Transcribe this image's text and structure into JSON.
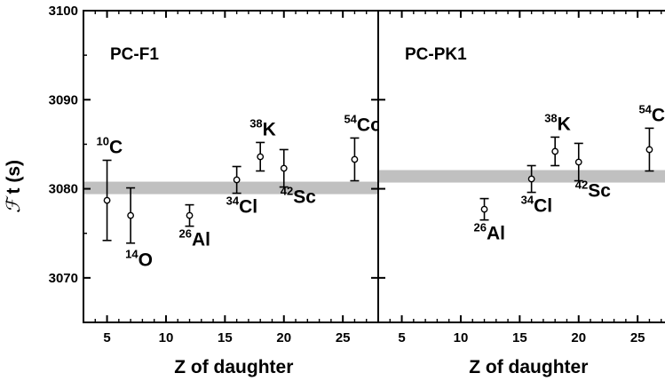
{
  "chart_data": {
    "type": "scatter",
    "ylabel_symbol": "ℱ",
    "ylabel_text": "t (s)",
    "ylim": [
      3065,
      3100
    ],
    "yticks": [
      3070,
      3080,
      3090,
      3100
    ],
    "shared_y": true,
    "panels": [
      {
        "title": "PC-F1",
        "xlabel": "Z of daughter",
        "xlim": [
          3,
          28
        ],
        "xticks": [
          5,
          10,
          15,
          20,
          25
        ],
        "band": {
          "center": 3080.1,
          "half_width": 0.7
        },
        "points": [
          {
            "nucleus_mass": "10",
            "nucleus_symbol": "C",
            "z": 5,
            "y": 3078.7,
            "err_lo": 4.5,
            "err_hi": 4.5,
            "label_pos": "above"
          },
          {
            "nucleus_mass": "14",
            "nucleus_symbol": "O",
            "z": 7,
            "y": 3077.0,
            "err_lo": 3.1,
            "err_hi": 3.1,
            "label_pos": "below"
          },
          {
            "nucleus_mass": "26",
            "nucleus_symbol": "Al",
            "z": 12,
            "y": 3077.0,
            "err_lo": 1.2,
            "err_hi": 1.2,
            "label_pos": "below"
          },
          {
            "nucleus_mass": "34",
            "nucleus_symbol": "Cl",
            "z": 16,
            "y": 3081.0,
            "err_lo": 1.5,
            "err_hi": 1.5,
            "label_pos": "below"
          },
          {
            "nucleus_mass": "38",
            "nucleus_symbol": "K",
            "z": 18,
            "y": 3083.6,
            "err_lo": 1.6,
            "err_hi": 1.6,
            "label_pos": "above"
          },
          {
            "nucleus_mass": "42",
            "nucleus_symbol": "Sc",
            "z": 20,
            "y": 3082.3,
            "err_lo": 2.1,
            "err_hi": 2.1,
            "label_pos": "below"
          },
          {
            "nucleus_mass": "54",
            "nucleus_symbol": "Co",
            "z": 26,
            "y": 3083.3,
            "err_lo": 2.4,
            "err_hi": 2.4,
            "label_pos": "above"
          }
        ]
      },
      {
        "title": "PC-PK1",
        "xlabel": "Z of daughter",
        "xlim": [
          3,
          28
        ],
        "xticks": [
          5,
          10,
          15,
          20,
          25
        ],
        "band": {
          "center": 3081.4,
          "half_width": 0.7
        },
        "points": [
          {
            "nucleus_mass": "26",
            "nucleus_symbol": "Al",
            "z": 12,
            "y": 3077.7,
            "err_lo": 1.2,
            "err_hi": 1.2,
            "label_pos": "below"
          },
          {
            "nucleus_mass": "34",
            "nucleus_symbol": "Cl",
            "z": 16,
            "y": 3081.1,
            "err_lo": 1.5,
            "err_hi": 1.5,
            "label_pos": "below"
          },
          {
            "nucleus_mass": "38",
            "nucleus_symbol": "K",
            "z": 18,
            "y": 3084.2,
            "err_lo": 1.6,
            "err_hi": 1.6,
            "label_pos": "above"
          },
          {
            "nucleus_mass": "42",
            "nucleus_symbol": "Sc",
            "z": 20,
            "y": 3083.0,
            "err_lo": 2.1,
            "err_hi": 2.1,
            "label_pos": "below"
          },
          {
            "nucleus_mass": "54",
            "nucleus_symbol": "Co",
            "z": 26,
            "y": 3084.4,
            "err_lo": 2.4,
            "err_hi": 2.4,
            "label_pos": "above"
          }
        ]
      }
    ]
  }
}
